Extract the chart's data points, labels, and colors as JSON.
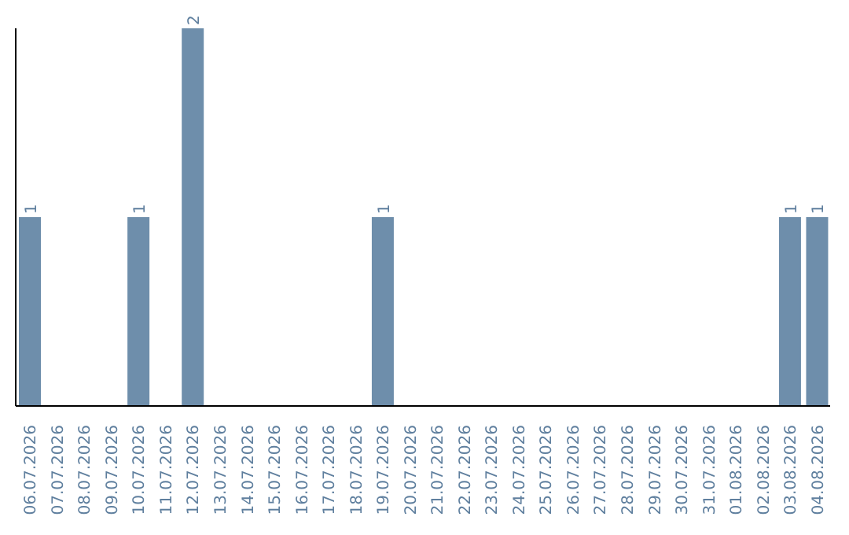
{
  "chart_data": {
    "type": "bar",
    "categories": [
      "06.07.2026",
      "07.07.2026",
      "08.07.2026",
      "09.07.2026",
      "10.07.2026",
      "11.07.2026",
      "12.07.2026",
      "13.07.2026",
      "14.07.2026",
      "15.07.2026",
      "16.07.2026",
      "17.07.2026",
      "18.07.2026",
      "19.07.2026",
      "20.07.2026",
      "21.07.2026",
      "22.07.2026",
      "23.07.2026",
      "24.07.2026",
      "25.07.2026",
      "26.07.2026",
      "27.07.2026",
      "28.07.2026",
      "29.07.2026",
      "30.07.2026",
      "31.07.2026",
      "01.08.2026",
      "02.08.2026",
      "03.08.2026",
      "04.08.2026"
    ],
    "values": [
      1,
      0,
      0,
      0,
      1,
      0,
      2,
      0,
      0,
      0,
      0,
      0,
      0,
      1,
      0,
      0,
      0,
      0,
      0,
      0,
      0,
      0,
      0,
      0,
      0,
      0,
      0,
      0,
      1,
      1
    ],
    "value_labels": [
      "1",
      null,
      null,
      null,
      "1",
      null,
      "2",
      null,
      null,
      null,
      null,
      null,
      null,
      "1",
      null,
      null,
      null,
      null,
      null,
      null,
      null,
      null,
      null,
      null,
      null,
      null,
      null,
      null,
      "1",
      "1"
    ],
    "color": "#6e8eab",
    "grid": false,
    "legend": false
  }
}
